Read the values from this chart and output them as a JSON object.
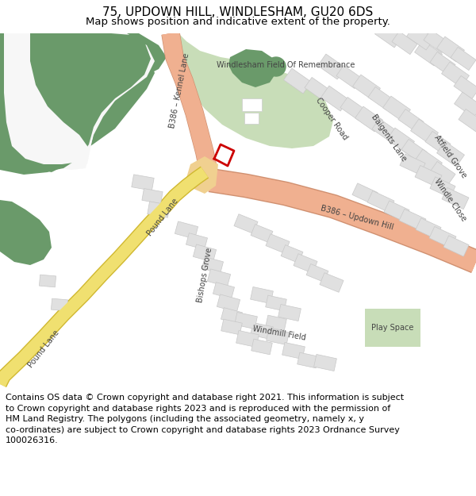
{
  "title": "75, UPDOWN HILL, WINDLESHAM, GU20 6DS",
  "subtitle": "Map shows position and indicative extent of the property.",
  "copyright_lines": [
    "Contains OS data © Crown copyright and database right 2021. This information is subject",
    "to Crown copyright and database rights 2023 and is reproduced with the permission of",
    "HM Land Registry. The polygons (including the associated geometry, namely x, y",
    "co-ordinates) are subject to Crown copyright and database rights 2023 Ordnance Survey",
    "100026316."
  ],
  "bg_color": "#ffffff",
  "map_bg": "#f7f7f7",
  "green_dark": "#6a9a6a",
  "green_light": "#c8ddb8",
  "green_light2": "#d8e8c8",
  "road_salmon": "#f0b090",
  "road_salmon_light": "#f5c8a8",
  "road_yellow": "#f0e070",
  "road_yellow_edge": "#d8c840",
  "building_fill": "#e0e0e0",
  "building_edge": "#c8c8c8",
  "plot_red": "#cc0000",
  "title_fontsize": 11,
  "subtitle_fontsize": 9.5,
  "copyright_fontsize": 8,
  "map_label_size": 7,
  "map_label_color": "#444444"
}
